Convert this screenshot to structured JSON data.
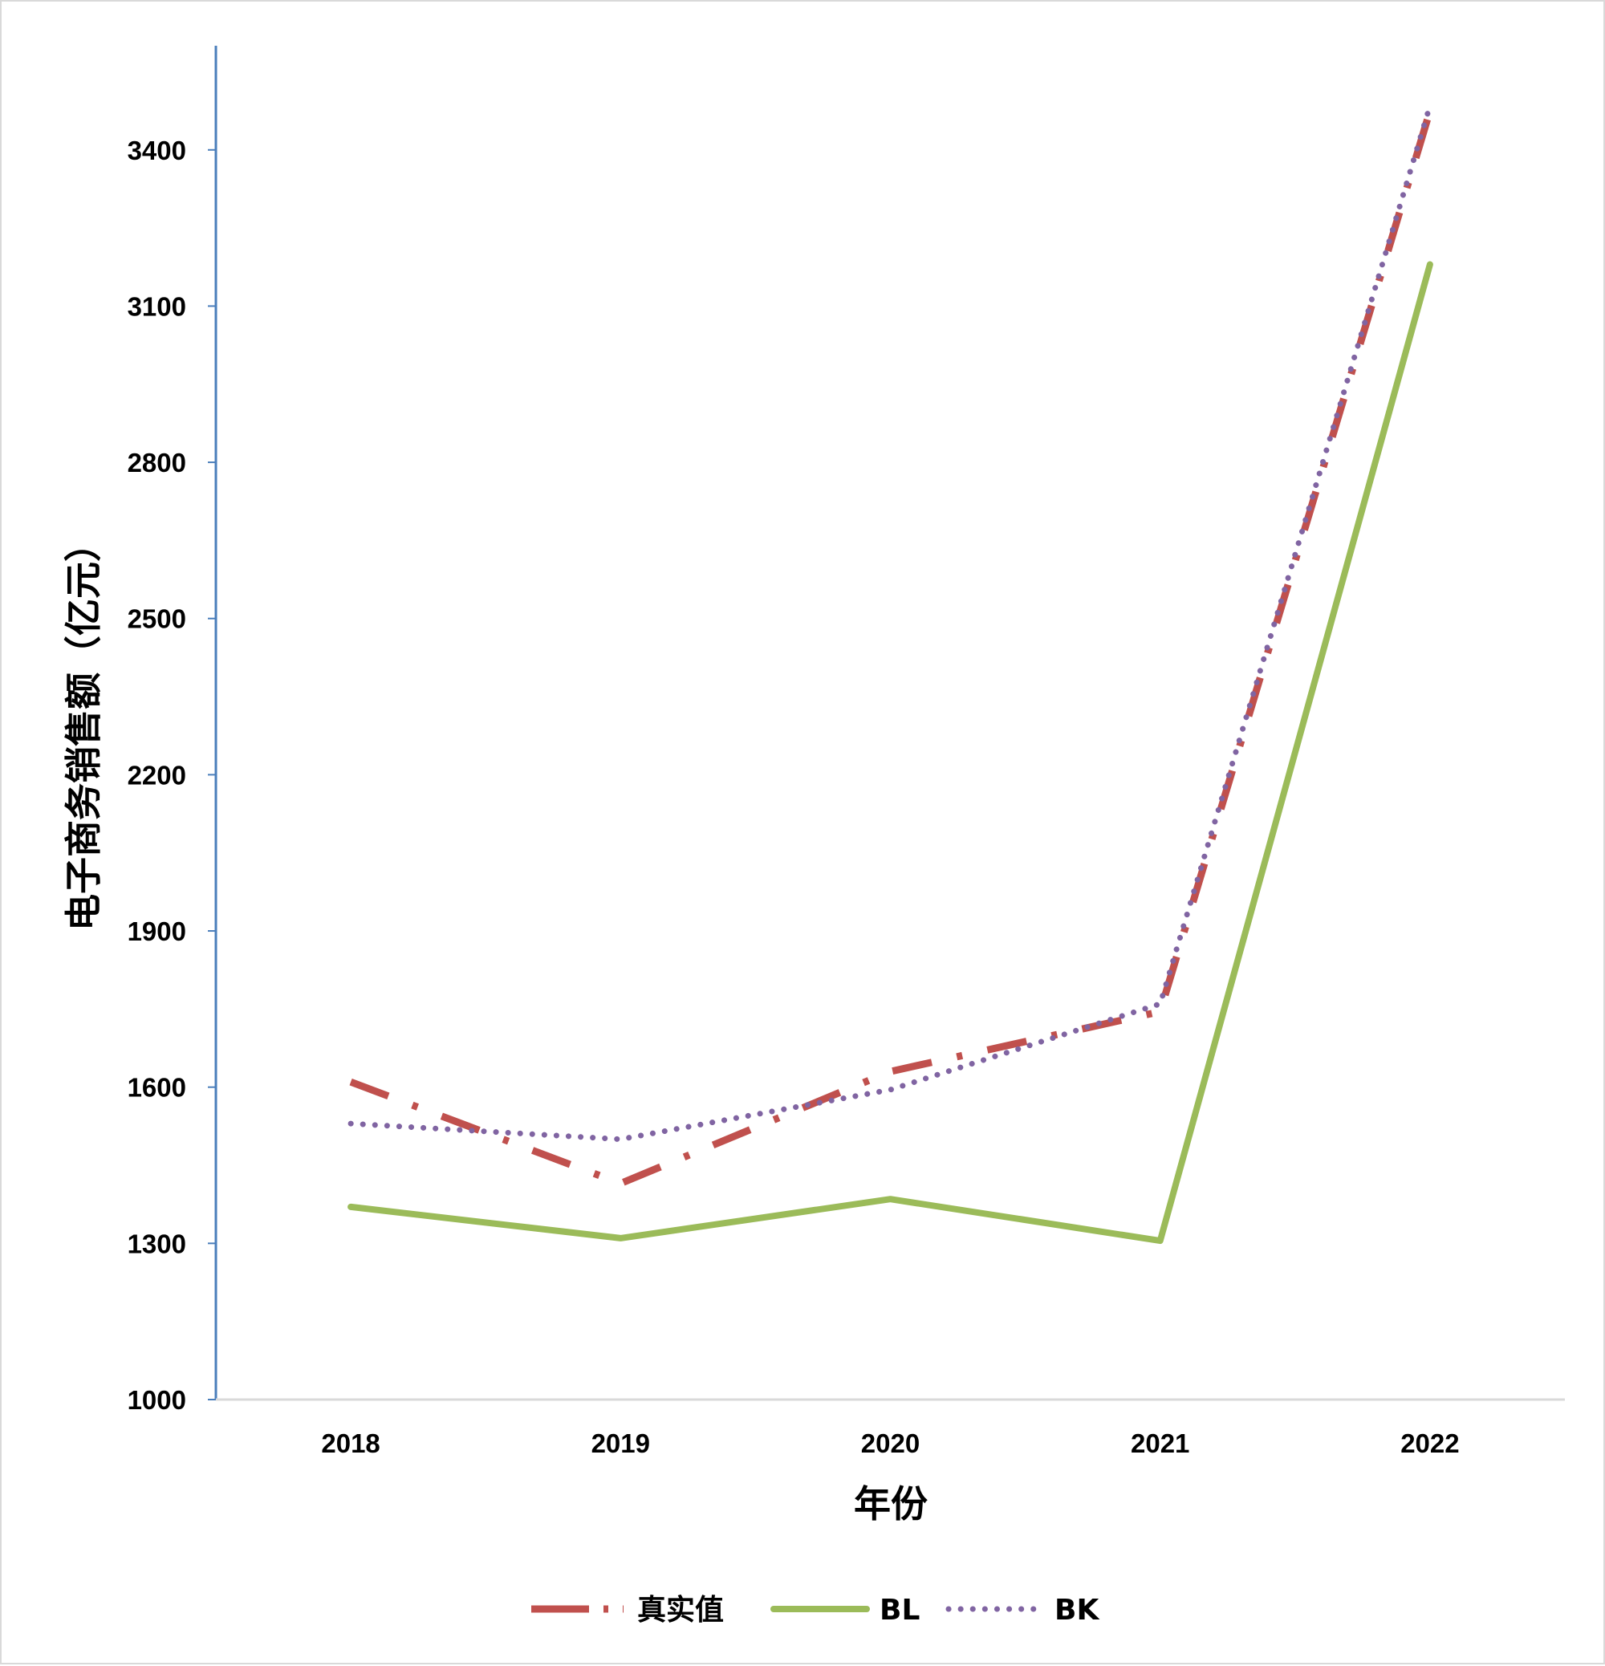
{
  "chart_data": {
    "type": "line",
    "title": "",
    "xlabel": "年份",
    "ylabel": "电子商务销售额（亿元）",
    "categories": [
      "2018",
      "2019",
      "2020",
      "2021",
      "2022"
    ],
    "ylim": [
      1000,
      3600
    ],
    "yticks": [
      1000,
      1300,
      1600,
      1900,
      2200,
      2500,
      2800,
      3100,
      3400
    ],
    "grid": false,
    "legend_position": "bottom",
    "series": [
      {
        "name": "真实值",
        "values": [
          1610,
          1415,
          1630,
          1745,
          3475
        ],
        "color": "#c0504d",
        "style": "long-dash-dot"
      },
      {
        "name": "BL",
        "values": [
          1370,
          1310,
          1385,
          1305,
          3180
        ],
        "color": "#9bbb59",
        "style": "solid"
      },
      {
        "name": "BK",
        "values": [
          1530,
          1500,
          1595,
          1760,
          3485
        ],
        "color": "#8064a2",
        "style": "dotted"
      }
    ]
  }
}
